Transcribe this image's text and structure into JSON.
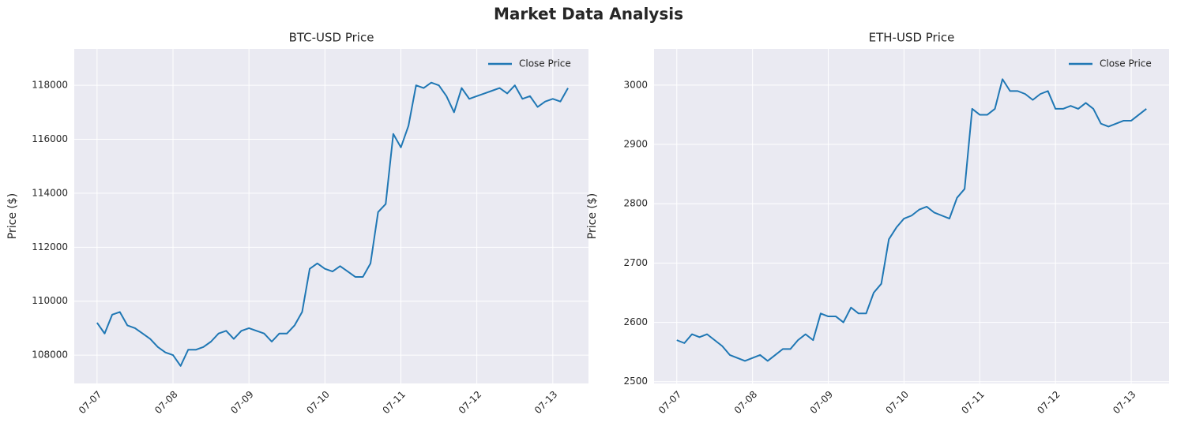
{
  "title": "Market Data Analysis",
  "chart_data": [
    {
      "type": "line",
      "title": "BTC-USD Price",
      "ylabel": "Price ($)",
      "x": [
        0,
        0.1,
        0.2,
        0.3,
        0.4,
        0.5,
        0.6,
        0.7,
        0.8,
        0.9,
        1,
        1.1,
        1.2,
        1.3,
        1.4,
        1.5,
        1.6,
        1.7,
        1.8,
        1.9,
        2,
        2.1,
        2.2,
        2.3,
        2.4,
        2.5,
        2.6,
        2.7,
        2.8,
        2.9,
        3,
        3.1,
        3.2,
        3.3,
        3.4,
        3.5,
        3.6,
        3.7,
        3.8,
        3.9,
        4,
        4.1,
        4.2,
        4.3,
        4.4,
        4.5,
        4.6,
        4.7,
        4.8,
        4.9,
        5,
        5.1,
        5.2,
        5.3,
        5.4,
        5.5,
        5.6,
        5.7,
        5.8,
        5.9,
        6,
        6.1,
        6.2
      ],
      "xlim": [
        -0.3,
        6.47
      ],
      "xticks": [
        {
          "value": 0,
          "label": "07-07"
        },
        {
          "value": 1,
          "label": "07-08"
        },
        {
          "value": 2,
          "label": "07-09"
        },
        {
          "value": 3,
          "label": "07-10"
        },
        {
          "value": 4,
          "label": "07-11"
        },
        {
          "value": 5,
          "label": "07-12"
        },
        {
          "value": 6,
          "label": "07-13"
        }
      ],
      "ylim": [
        106950,
        119350
      ],
      "yticks": [
        108000,
        110000,
        112000,
        114000,
        116000,
        118000
      ],
      "grid": true,
      "legend": "upper right",
      "series": [
        {
          "name": "Close Price",
          "color": "#1f77b4",
          "values": [
            109200,
            108800,
            109500,
            109600,
            109100,
            109000,
            108800,
            108600,
            108300,
            108100,
            108000,
            107600,
            108200,
            108200,
            108300,
            108500,
            108800,
            108900,
            108600,
            108900,
            109000,
            108900,
            108800,
            108500,
            108800,
            108800,
            109100,
            109600,
            111200,
            111400,
            111200,
            111100,
            111300,
            111100,
            110900,
            110900,
            111400,
            113300,
            113600,
            116200,
            115700,
            116500,
            118000,
            117900,
            118100,
            118000,
            117600,
            117000,
            117900,
            117500,
            117600,
            117700,
            117800,
            117900,
            117700,
            118000,
            117500,
            117600,
            117200,
            117400,
            117500,
            117400,
            117900
          ]
        }
      ]
    },
    {
      "type": "line",
      "title": "ETH-USD Price",
      "ylabel": "Price ($)",
      "x": [
        0,
        0.1,
        0.2,
        0.3,
        0.4,
        0.5,
        0.6,
        0.7,
        0.8,
        0.9,
        1,
        1.1,
        1.2,
        1.3,
        1.4,
        1.5,
        1.6,
        1.7,
        1.8,
        1.9,
        2,
        2.1,
        2.2,
        2.3,
        2.4,
        2.5,
        2.6,
        2.7,
        2.8,
        2.9,
        3,
        3.1,
        3.2,
        3.3,
        3.4,
        3.5,
        3.6,
        3.7,
        3.8,
        3.9,
        4,
        4.1,
        4.2,
        4.3,
        4.4,
        4.5,
        4.6,
        4.7,
        4.8,
        4.9,
        5,
        5.1,
        5.2,
        5.3,
        5.4,
        5.5,
        5.6,
        5.7,
        5.8,
        5.9,
        6,
        6.1,
        6.2
      ],
      "xlim": [
        -0.3,
        6.5
      ],
      "xticks": [
        {
          "value": 0,
          "label": "07-07"
        },
        {
          "value": 1,
          "label": "07-08"
        },
        {
          "value": 2,
          "label": "07-09"
        },
        {
          "value": 3,
          "label": "07-10"
        },
        {
          "value": 4,
          "label": "07-11"
        },
        {
          "value": 5,
          "label": "07-12"
        },
        {
          "value": 6,
          "label": "07-13"
        }
      ],
      "ylim": [
        2497,
        3061
      ],
      "yticks": [
        2500,
        2600,
        2700,
        2800,
        2900,
        3000
      ],
      "grid": true,
      "legend": "upper right",
      "series": [
        {
          "name": "Close Price",
          "color": "#1f77b4",
          "values": [
            2570,
            2565,
            2580,
            2575,
            2580,
            2570,
            2560,
            2545,
            2540,
            2535,
            2540,
            2545,
            2535,
            2545,
            2555,
            2555,
            2570,
            2580,
            2570,
            2615,
            2610,
            2610,
            2600,
            2625,
            2615,
            2615,
            2650,
            2665,
            2740,
            2760,
            2775,
            2780,
            2790,
            2795,
            2785,
            2780,
            2775,
            2810,
            2825,
            2960,
            2950,
            2950,
            2960,
            3010,
            2990,
            2990,
            2985,
            2975,
            2985,
            2990,
            2960,
            2960,
            2965,
            2960,
            2970,
            2960,
            2935,
            2930,
            2935,
            2940,
            2940,
            2950,
            2960
          ]
        }
      ]
    }
  ]
}
